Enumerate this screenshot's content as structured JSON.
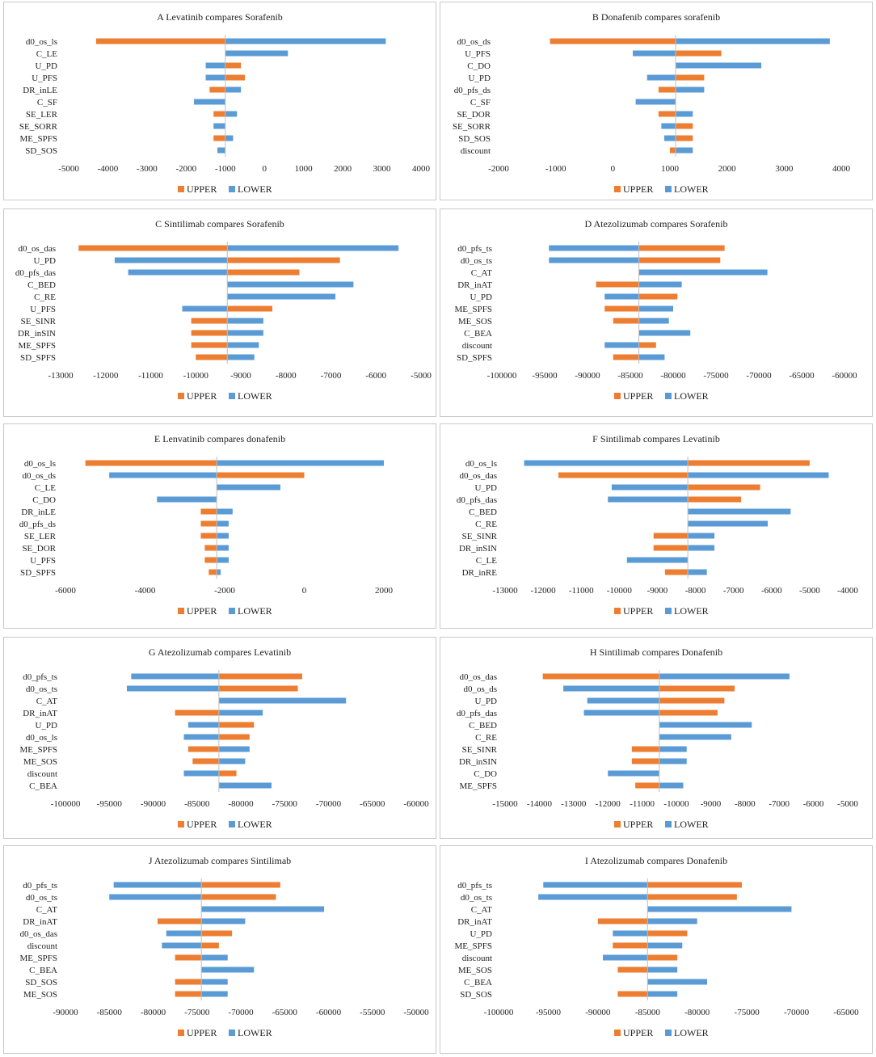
{
  "colors": {
    "upper": "#ed7d31",
    "lower": "#5b9bd5",
    "axis": "#bfbfbf"
  },
  "legend": {
    "upper": "UPPER",
    "lower": "LOWER"
  },
  "chart_data": [
    {
      "type": "bar",
      "orientation": "horizontal",
      "title": "A  Levatinib compares Sorafenib",
      "categories": [
        "d0_os_ls",
        "C_LE",
        "U_PD",
        "U_PFS",
        "DR_inLE",
        "C_SF",
        "SE_LER",
        "SE_SORR",
        "ME_SPFS",
        "SD_SOS"
      ],
      "base": -1000,
      "series": [
        {
          "name": "UPPER",
          "values": [
            -4300,
            -1000,
            -600,
            -500,
            -1400,
            -1000,
            -1300,
            -1000,
            -1300,
            -1200
          ]
        },
        {
          "name": "LOWER",
          "values": [
            3100,
            600,
            -1500,
            -1500,
            -600,
            -1800,
            -700,
            -1300,
            -800,
            -1200
          ]
        }
      ],
      "xlim": [
        -5000,
        4000
      ],
      "ticks": [
        -5000,
        -4000,
        -3000,
        -2000,
        -1000,
        0,
        1000,
        2000,
        3000,
        4000
      ]
    },
    {
      "type": "bar",
      "orientation": "horizontal",
      "title": "B  Donafenib compares sorafenib",
      "categories": [
        "d0_os_ds",
        "U_PFS",
        "C_DO",
        "U_PD",
        "d0_pfs_ds",
        "C_SF",
        "SE_DOR",
        "SE_SORR",
        "SD_SOS",
        "discount"
      ],
      "base": 1100,
      "series": [
        {
          "name": "UPPER",
          "values": [
            -1100,
            1900,
            1100,
            1600,
            800,
            1100,
            800,
            1400,
            1400,
            1000
          ]
        },
        {
          "name": "LOWER",
          "values": [
            3800,
            350,
            2600,
            600,
            1600,
            400,
            1400,
            850,
            900,
            1400
          ]
        }
      ],
      "xlim": [
        -2000,
        4000
      ],
      "ticks": [
        -2000,
        -1000,
        0,
        1000,
        2000,
        3000,
        4000
      ]
    },
    {
      "type": "bar",
      "orientation": "horizontal",
      "title": "C  Sintilimab compares Sorafenib",
      "categories": [
        "d0_os_das",
        "U_PD",
        "d0_pfs_das",
        "C_BED",
        "C_RE",
        "U_PFS",
        "SE_SINR",
        "DR_inSIN",
        "ME_SPFS",
        "SD_SPFS"
      ],
      "base": -9300,
      "series": [
        {
          "name": "UPPER",
          "values": [
            -12600,
            -6800,
            -7700,
            -9300,
            -9300,
            -8300,
            -10100,
            -10100,
            -10100,
            -10000
          ]
        },
        {
          "name": "LOWER",
          "values": [
            -5500,
            -11800,
            -11500,
            -6500,
            -6900,
            -10300,
            -8500,
            -8500,
            -8600,
            -8700
          ]
        }
      ],
      "xlim": [
        -13000,
        -5000
      ],
      "ticks": [
        -13000,
        -12000,
        -11000,
        -10000,
        -9000,
        -8000,
        -7000,
        -6000,
        -5000
      ]
    },
    {
      "type": "bar",
      "orientation": "horizontal",
      "title": "D  Atezolizumab compares Sorafenib",
      "categories": [
        "d0_pfs_ts",
        "d0_os_ts",
        "C_AT",
        "DR_inAT",
        "U_PD",
        "ME_SPFS",
        "ME_SOS",
        "C_BEA",
        "discount",
        "SD_SPFS"
      ],
      "base": -84000,
      "series": [
        {
          "name": "UPPER",
          "values": [
            -74000,
            -74500,
            -84000,
            -89000,
            -79500,
            -88000,
            -87000,
            -84000,
            -82000,
            -87000
          ]
        },
        {
          "name": "LOWER",
          "values": [
            -94500,
            -94500,
            -69000,
            -79000,
            -88000,
            -80000,
            -80500,
            -78000,
            -88000,
            -81000
          ]
        }
      ],
      "xlim": [
        -100000,
        -60000
      ],
      "ticks": [
        -100000,
        -95000,
        -90000,
        -85000,
        -80000,
        -75000,
        -70000,
        -65000,
        -60000
      ]
    },
    {
      "type": "bar",
      "orientation": "horizontal",
      "title": "E  Lenvatinib compares donafenib",
      "categories": [
        "d0_os_ls",
        "d0_os_ds",
        "C_LE",
        "C_DO",
        "DR_inLE",
        "d0_pfs_ds",
        "SE_LER",
        "SE_DOR",
        "U_PFS",
        "SD_SPFS"
      ],
      "base": -2200,
      "series": [
        {
          "name": "UPPER",
          "values": [
            -5500,
            0,
            -2200,
            -2200,
            -2600,
            -2600,
            -2600,
            -2500,
            -2500,
            -2400
          ]
        },
        {
          "name": "LOWER",
          "values": [
            2000,
            -4900,
            -600,
            -3700,
            -1800,
            -1900,
            -1900,
            -1900,
            -1900,
            -2100
          ]
        }
      ],
      "xlim": [
        -6000,
        2000
      ],
      "ticks": [
        -6000,
        -4000,
        -2000,
        0,
        2000
      ]
    },
    {
      "type": "bar",
      "orientation": "horizontal",
      "title": "F  Sintilimab compares Levatinib",
      "categories": [
        "d0_os_ls",
        "d0_os_das",
        "U_PD",
        "d0_pfs_das",
        "C_BED",
        "C_RE",
        "SE_SINR",
        "DR_inSIN",
        "C_LE",
        "DR_inRE"
      ],
      "base": -8200,
      "series": [
        {
          "name": "UPPER",
          "values": [
            -5000,
            -11600,
            -6300,
            -6800,
            -8200,
            -8200,
            -9100,
            -9100,
            -8200,
            -8800
          ]
        },
        {
          "name": "LOWER",
          "values": [
            -12500,
            -4500,
            -10200,
            -10300,
            -5500,
            -6100,
            -7500,
            -7500,
            -9800,
            -7700
          ]
        }
      ],
      "xlim": [
        -13000,
        -4000
      ],
      "ticks": [
        -13000,
        -12000,
        -11000,
        -10000,
        -9000,
        -8000,
        -7000,
        -6000,
        -5000,
        -4000
      ]
    },
    {
      "type": "bar",
      "orientation": "horizontal",
      "title": "G  Atezolizumab compares Levatinib",
      "categories": [
        "d0_pfs_ts",
        "d0_os_ts",
        "C_AT",
        "DR_inAT",
        "U_PD",
        "d0_os_ls",
        "ME_SPFS",
        "ME_SOS",
        "discount",
        "C_BEA"
      ],
      "base": -82500,
      "series": [
        {
          "name": "UPPER",
          "values": [
            -73000,
            -73500,
            -82500,
            -87500,
            -78500,
            -79000,
            -86000,
            -85500,
            -80500,
            -82500
          ]
        },
        {
          "name": "LOWER",
          "values": [
            -92500,
            -93000,
            -68000,
            -77500,
            -86000,
            -86500,
            -79000,
            -79500,
            -86500,
            -76500
          ]
        }
      ],
      "xlim": [
        -100000,
        -60000
      ],
      "ticks": [
        -100000,
        -95000,
        -90000,
        -85000,
        -80000,
        -75000,
        -70000,
        -65000,
        -60000
      ]
    },
    {
      "type": "bar",
      "orientation": "horizontal",
      "title": "H  Sintilimab compares Donafenib",
      "categories": [
        "d0_os_das",
        "d0_os_ds",
        "U_PD",
        "d0_pfs_das",
        "C_BED",
        "C_RE",
        "SE_SINR",
        "DR_inSIN",
        "C_DO",
        "ME_SPFS"
      ],
      "base": -10500,
      "series": [
        {
          "name": "UPPER",
          "values": [
            -13900,
            -8300,
            -8600,
            -8800,
            -10500,
            -10500,
            -11300,
            -11300,
            -10500,
            -11200
          ]
        },
        {
          "name": "LOWER",
          "values": [
            -6700,
            -13300,
            -12600,
            -12700,
            -7800,
            -8400,
            -9700,
            -9700,
            -12000,
            -9800
          ]
        }
      ],
      "xlim": [
        -15000,
        -5000
      ],
      "ticks": [
        -15000,
        -14000,
        -13000,
        -12000,
        -11000,
        -10000,
        -9000,
        -8000,
        -7000,
        -6000,
        -5000
      ]
    },
    {
      "type": "bar",
      "orientation": "horizontal",
      "title": "J  Atezolizumab compares Sintilimab",
      "categories": [
        "d0_pfs_ts",
        "d0_os_ts",
        "C_AT",
        "DR_inAT",
        "d0_os_das",
        "discount",
        "ME_SPFS",
        "C_BEA",
        "SD_SOS",
        "ME_SOS"
      ],
      "base": -74500,
      "series": [
        {
          "name": "UPPER",
          "values": [
            -65500,
            -66000,
            -74500,
            -79500,
            -71000,
            -72500,
            -77500,
            -74500,
            -77500,
            -77500
          ]
        },
        {
          "name": "LOWER",
          "values": [
            -84500,
            -85000,
            -60500,
            -69500,
            -78500,
            -79000,
            -71500,
            -68500,
            -71500,
            -71500
          ]
        }
      ],
      "xlim": [
        -90000,
        -50000
      ],
      "ticks": [
        -90000,
        -85000,
        -80000,
        -75000,
        -70000,
        -65000,
        -60000,
        -55000,
        -50000
      ]
    },
    {
      "type": "bar",
      "orientation": "horizontal",
      "title": "I  Atezolizumab compares Donafenib",
      "categories": [
        "d0_pfs_ts",
        "d0_os_ts",
        "C_AT",
        "DR_inAT",
        "U_PD",
        "ME_SPFS",
        "discount",
        "ME_SOS",
        "C_BEA",
        "SD_SOS"
      ],
      "base": -85000,
      "series": [
        {
          "name": "UPPER",
          "values": [
            -75500,
            -76000,
            -85000,
            -90000,
            -81000,
            -88500,
            -82000,
            -88000,
            -85000,
            -88000
          ]
        },
        {
          "name": "LOWER",
          "values": [
            -95500,
            -96000,
            -70500,
            -80000,
            -88500,
            -81500,
            -89500,
            -82000,
            -79000,
            -82000
          ]
        }
      ],
      "xlim": [
        -100000,
        -65000
      ],
      "ticks": [
        -100000,
        -95000,
        -90000,
        -85000,
        -80000,
        -75000,
        -70000,
        -65000
      ]
    }
  ]
}
